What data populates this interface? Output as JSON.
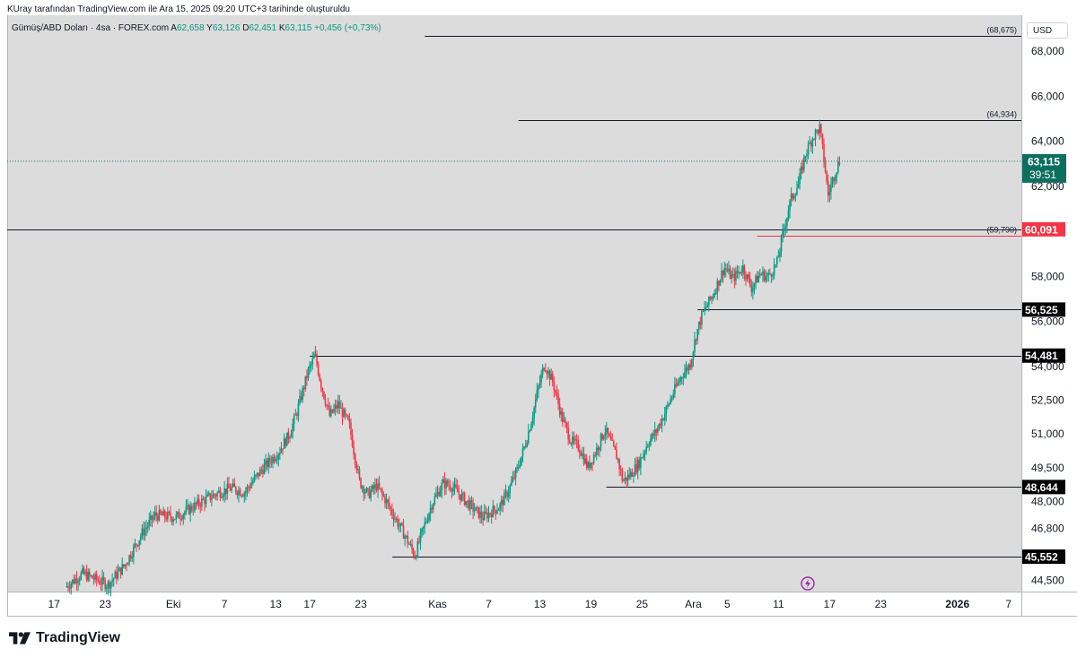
{
  "header_note": "KUray tarafından TradingView.com ile Ara 15, 2025 09:20 UTC+3 tarihinde oluşturuldu",
  "legend": {
    "symbol": "Gümüş/ABD Doları · 4sa · FOREX.com",
    "o_label": "A",
    "o_value": "62,658",
    "h_label": "Y",
    "h_value": "63,126",
    "l_label": "D",
    "l_value": "62,451",
    "c_label": "K",
    "c_value": "63,115",
    "change": "+0,456 (+0,73%)"
  },
  "currency_label": "USD",
  "brand": "TradingView",
  "colors": {
    "up": "#089981",
    "down": "#F23645",
    "background": "#DCDCDC",
    "line": "#131722",
    "price_tag": "#0C6E5F",
    "support_tag": "#F23645",
    "level_tag": "#000000"
  },
  "icons": {
    "logo": "tradingview-logo-icon",
    "lightning": "lightning-icon"
  },
  "chart_data": {
    "type": "candlestick",
    "ylim": [
      44.0,
      69.6
    ],
    "y_ticks": [
      "68,000",
      "66,000",
      "64,000",
      "62,000",
      "58,000",
      "56,000",
      "54,000",
      "52,500",
      "51,000",
      "49,500",
      "48,000",
      "46,800",
      "44,500"
    ],
    "y_tick_values": [
      68.0,
      66.0,
      64.0,
      62.0,
      58.0,
      56.0,
      54.0,
      52.5,
      51.0,
      49.5,
      48.0,
      46.8,
      44.5
    ],
    "x_ticks": [
      "17",
      "23",
      "Eki",
      "7",
      "13",
      "17",
      "23",
      "Kas",
      "7",
      "13",
      "19",
      "25",
      "Ara",
      "5",
      "11",
      "17",
      "23",
      "2026",
      "7"
    ],
    "x_tick_days": [
      -14,
      -8,
      0,
      6,
      12,
      16,
      22,
      31,
      37,
      43,
      49,
      55,
      61,
      65,
      71,
      77,
      83,
      92,
      98
    ],
    "x_start_day": -19.5,
    "x_end_day": 99.5,
    "horizontal_levels": [
      {
        "value": 68.675,
        "label": "(68,675)",
        "from_day": 29.5,
        "style": "thin"
      },
      {
        "value": 64.934,
        "label": "(64,934)",
        "from_day": 40.5,
        "style": "thin"
      },
      {
        "value": 59.79,
        "label": "(59,790)",
        "from_day": 68.5,
        "style": "red"
      },
      {
        "value": 60.091,
        "tag": "60,091",
        "from_day": -19.5,
        "style": "support"
      },
      {
        "value": 56.525,
        "tag": "56,525",
        "from_day": 61.5,
        "style": "level"
      },
      {
        "value": 54.481,
        "tag": "54,481",
        "from_day": 16.0,
        "style": "level"
      },
      {
        "value": 48.644,
        "tag": "48,644",
        "from_day": 50.8,
        "style": "level"
      },
      {
        "value": 45.552,
        "tag": "45,552",
        "from_day": 25.7,
        "style": "level"
      }
    ],
    "current_price": {
      "value": 63.115,
      "label": "63,115",
      "countdown": "39:51"
    },
    "path": [
      [
        -12.5,
        44.2
      ],
      [
        -10.5,
        44.8
      ],
      [
        -7.5,
        44.3
      ],
      [
        -5.5,
        45.2
      ],
      [
        -3.5,
        46.6
      ],
      [
        -2.0,
        47.4
      ],
      [
        0.5,
        47.3
      ],
      [
        3.5,
        48.0
      ],
      [
        5.5,
        48.4
      ],
      [
        7.0,
        48.6
      ],
      [
        8.5,
        48.4
      ],
      [
        10.5,
        49.4
      ],
      [
        12.5,
        50.2
      ],
      [
        13.8,
        51.0
      ],
      [
        14.6,
        51.9
      ],
      [
        16.0,
        53.8
      ],
      [
        16.8,
        54.48
      ],
      [
        17.5,
        53.2
      ],
      [
        18.5,
        51.8
      ],
      [
        19.5,
        52.3
      ],
      [
        20.8,
        51.4
      ],
      [
        22.0,
        48.9
      ],
      [
        23.0,
        48.3
      ],
      [
        24.0,
        48.7
      ],
      [
        25.0,
        48.1
      ],
      [
        26.0,
        47.4
      ],
      [
        27.3,
        46.5
      ],
      [
        28.5,
        45.6
      ],
      [
        29.5,
        46.8
      ],
      [
        30.5,
        47.9
      ],
      [
        31.8,
        48.8
      ],
      [
        32.8,
        48.7
      ],
      [
        34.0,
        48.2
      ],
      [
        35.3,
        47.7
      ],
      [
        36.5,
        47.3
      ],
      [
        38.5,
        47.8
      ],
      [
        39.5,
        48.5
      ],
      [
        40.5,
        49.4
      ],
      [
        41.5,
        50.6
      ],
      [
        42.3,
        51.8
      ],
      [
        42.9,
        52.9
      ],
      [
        43.7,
        54.1
      ],
      [
        44.7,
        53.3
      ],
      [
        45.7,
        51.8
      ],
      [
        46.8,
        50.7
      ],
      [
        47.8,
        50.4
      ],
      [
        48.8,
        49.5
      ],
      [
        49.8,
        50.3
      ],
      [
        50.8,
        51.2
      ],
      [
        51.5,
        50.6
      ],
      [
        52.3,
        49.9
      ],
      [
        52.9,
        48.9
      ],
      [
        53.8,
        49.2
      ],
      [
        54.8,
        49.7
      ],
      [
        55.8,
        50.6
      ],
      [
        56.8,
        51.1
      ],
      [
        57.8,
        51.9
      ],
      [
        58.8,
        52.8
      ],
      [
        59.8,
        53.6
      ],
      [
        60.8,
        54.1
      ],
      [
        61.5,
        55.4
      ],
      [
        62.2,
        56.3
      ],
      [
        63.5,
        57.2
      ],
      [
        64.8,
        58.4
      ],
      [
        65.8,
        57.9
      ],
      [
        67.0,
        58.4
      ],
      [
        68.0,
        57.5
      ],
      [
        69.0,
        58.1
      ],
      [
        70.0,
        58.0
      ],
      [
        71.0,
        58.6
      ],
      [
        71.8,
        60.1
      ],
      [
        72.6,
        61.4
      ],
      [
        73.5,
        62.1
      ],
      [
        74.3,
        63.4
      ],
      [
        75.2,
        64.2
      ],
      [
        76.0,
        64.6
      ],
      [
        76.6,
        62.9
      ],
      [
        77.0,
        61.6
      ],
      [
        77.6,
        62.4
      ],
      [
        78.3,
        63.115
      ]
    ]
  }
}
